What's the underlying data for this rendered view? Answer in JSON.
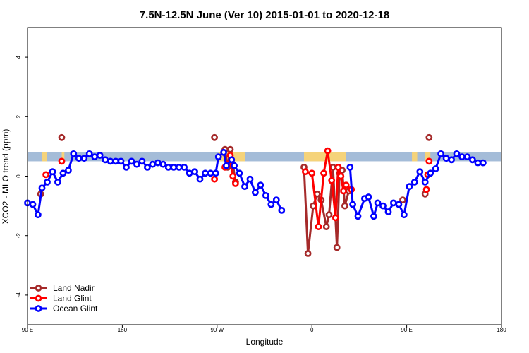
{
  "chart_data": {
    "type": "line",
    "title": "7.5N-12.5N June (Ver 10)   2015-01-01 to 2020-12-18",
    "xlabel": "Longitude",
    "ylabel": "XCO2 - MLO trend (ppm)",
    "xlim": [
      -180,
      180
    ],
    "ylim": [
      -5,
      5
    ],
    "x_ticks": [
      {
        "value": -180,
        "label": "90 E"
      },
      {
        "value": -108,
        "label": "180"
      },
      {
        "value": -36,
        "label": "90 W"
      },
      {
        "value": 36,
        "label": "0"
      },
      {
        "value": 108,
        "label": "90 E"
      },
      {
        "value": 180,
        "label": "180"
      }
    ],
    "y_ticks": [
      -4,
      -2,
      0,
      2,
      4
    ],
    "grid": false,
    "legend_position": "bottom-left",
    "background_colors": {
      "ocean": "#a4bcd8",
      "land": "#f5d37a"
    },
    "band": {
      "y_from": 0.5,
      "y_to": 0.8
    },
    "land_spans": [
      {
        "x_from": -169,
        "x_to": -165,
        "height": [
          0.5,
          0.8
        ]
      },
      {
        "x_from": -154,
        "x_to": -152,
        "height": [
          0.5,
          0.8
        ]
      },
      {
        "x_from": -35,
        "x_to": -15,
        "height": [
          0.5,
          0.8
        ]
      },
      {
        "x_from": 30,
        "x_to": 62,
        "height": [
          0.5,
          0.8
        ]
      },
      {
        "x_from": 112,
        "x_to": 116,
        "height": [
          0.5,
          0.8
        ]
      },
      {
        "x_from": 122,
        "x_to": 126,
        "height": [
          0.5,
          0.8
        ]
      }
    ],
    "series": [
      {
        "name": "Land Nadir",
        "color": "#a52a2a",
        "segments": [
          [
            [
              -170,
              -0.6
            ]
          ],
          [
            [
              -154,
              1.3
            ]
          ],
          [
            [
              -38,
              1.3
            ]
          ],
          [
            [
              -30,
              0.9
            ],
            [
              -28,
              0.3
            ],
            [
              -26,
              0.9
            ],
            [
              -24,
              0.4
            ],
            [
              -22,
              -0.2
            ]
          ],
          [
            [
              30,
              0.3
            ],
            [
              33,
              -2.6
            ],
            [
              37,
              -1.0
            ],
            [
              40,
              -0.6
            ],
            [
              43,
              -0.8
            ],
            [
              47,
              -1.7
            ],
            [
              49,
              -1.3
            ],
            [
              52,
              0.3
            ],
            [
              55,
              -2.4
            ],
            [
              57,
              0.1
            ],
            [
              59,
              0.2
            ],
            [
              61,
              -1.0
            ],
            [
              64,
              -0.5
            ]
          ],
          [
            [
              105,
              -0.8
            ]
          ],
          [
            [
              122,
              -0.6
            ]
          ],
          [
            [
              125,
              1.3
            ]
          ]
        ]
      },
      {
        "name": "Land Glint",
        "color": "#ff0000",
        "segments": [
          [
            [
              -166,
              0.05
            ]
          ],
          [
            [
              -154,
              0.5
            ]
          ],
          [
            [
              -38,
              -0.1
            ]
          ],
          [
            [
              -30,
              0.3
            ],
            [
              -28,
              0.4
            ],
            [
              -26,
              0.7
            ],
            [
              -24,
              0.0
            ],
            [
              -22,
              -0.25
            ]
          ],
          [
            [
              31,
              0.15
            ],
            [
              36,
              0.1
            ],
            [
              41,
              -1.7
            ],
            [
              45,
              0.1
            ],
            [
              48,
              0.85
            ],
            [
              51,
              -0.15
            ],
            [
              54,
              -1.4
            ],
            [
              56,
              0.3
            ],
            [
              58,
              0.0
            ],
            [
              60,
              -0.5
            ],
            [
              62,
              -0.3
            ],
            [
              66,
              -0.45
            ]
          ],
          [
            [
              123,
              -0.45
            ]
          ],
          [
            [
              124,
              0.05
            ]
          ],
          [
            [
              125,
              0.5
            ]
          ]
        ]
      },
      {
        "name": "Ocean Glint",
        "color": "#0000ff",
        "segments": [
          [
            [
              -180,
              -0.9
            ],
            [
              -176,
              -0.95
            ],
            [
              -172,
              -1.3
            ],
            [
              -169,
              -0.4
            ],
            [
              -165,
              -0.2
            ],
            [
              -161,
              0.15
            ],
            [
              -157,
              -0.2
            ],
            [
              -153,
              0.1
            ],
            [
              -149,
              0.2
            ],
            [
              -145,
              0.75
            ],
            [
              -141,
              0.6
            ],
            [
              -137,
              0.6
            ],
            [
              -133,
              0.75
            ],
            [
              -129,
              0.65
            ],
            [
              -125,
              0.7
            ],
            [
              -121,
              0.55
            ],
            [
              -117,
              0.5
            ],
            [
              -113,
              0.5
            ],
            [
              -109,
              0.5
            ],
            [
              -105,
              0.3
            ],
            [
              -101,
              0.5
            ],
            [
              -97,
              0.4
            ],
            [
              -93,
              0.5
            ],
            [
              -89,
              0.3
            ],
            [
              -85,
              0.4
            ],
            [
              -81,
              0.45
            ],
            [
              -77,
              0.4
            ],
            [
              -73,
              0.3
            ],
            [
              -69,
              0.3
            ],
            [
              -65,
              0.3
            ],
            [
              -61,
              0.3
            ],
            [
              -57,
              0.1
            ],
            [
              -53,
              0.15
            ],
            [
              -49,
              -0.1
            ],
            [
              -45,
              0.1
            ],
            [
              -41,
              0.1
            ],
            [
              -37,
              0.1
            ],
            [
              -35,
              0.65
            ],
            [
              -31,
              0.8
            ],
            [
              -29,
              0.35
            ],
            [
              -25,
              0.55
            ],
            [
              -23,
              0.35
            ],
            [
              -19,
              0.1
            ],
            [
              -15,
              -0.35
            ],
            [
              -11,
              -0.1
            ],
            [
              -7,
              -0.55
            ],
            [
              -3,
              -0.3
            ],
            [
              1,
              -0.65
            ],
            [
              5,
              -0.95
            ],
            [
              9,
              -0.8
            ],
            [
              13,
              -1.15
            ]
          ],
          [
            [
              65,
              0.3
            ],
            [
              67,
              -0.95
            ],
            [
              71,
              -1.35
            ],
            [
              76,
              -0.75
            ],
            [
              79,
              -0.7
            ],
            [
              83,
              -1.35
            ],
            [
              86,
              -0.9
            ],
            [
              90,
              -1.0
            ],
            [
              94,
              -1.2
            ],
            [
              98,
              -0.9
            ],
            [
              102,
              -0.95
            ],
            [
              106,
              -1.3
            ],
            [
              110,
              -0.35
            ],
            [
              114,
              -0.2
            ],
            [
              118,
              0.15
            ],
            [
              122,
              -0.2
            ],
            [
              126,
              0.1
            ],
            [
              130,
              0.25
            ],
            [
              134,
              0.75
            ],
            [
              138,
              0.6
            ],
            [
              142,
              0.55
            ],
            [
              146,
              0.75
            ],
            [
              150,
              0.65
            ],
            [
              154,
              0.65
            ],
            [
              158,
              0.55
            ],
            [
              162,
              0.45
            ],
            [
              166,
              0.45
            ]
          ]
        ]
      }
    ]
  }
}
